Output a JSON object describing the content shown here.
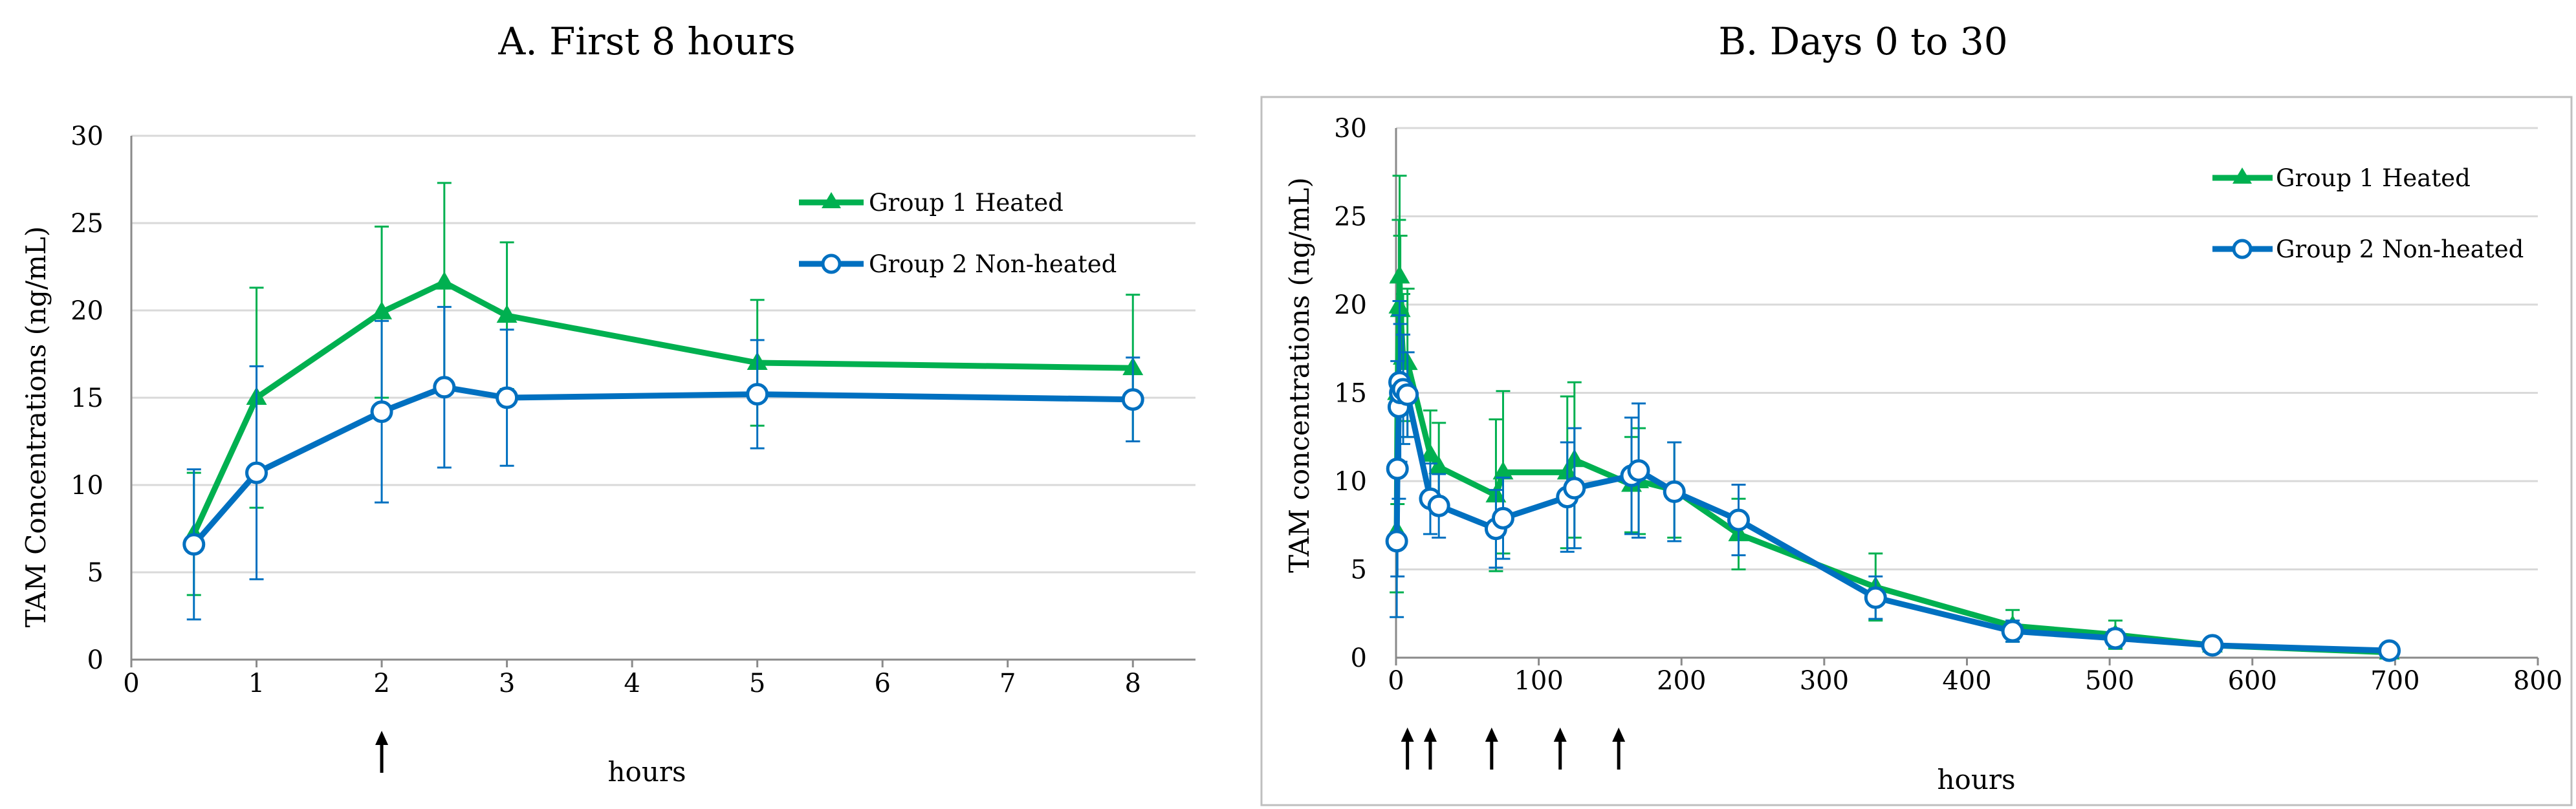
{
  "chart_data": [
    {
      "type": "line",
      "title": "A.  First 8 hours",
      "xlabel": "hours",
      "ylabel": "TAM Concentrations (ng/mL)",
      "xlim": [
        0,
        8.5
      ],
      "ylim": [
        0,
        30
      ],
      "xticks": [
        0,
        1,
        2,
        3,
        4,
        5,
        6,
        7,
        8
      ],
      "yticks": [
        0,
        5,
        10,
        15,
        20,
        25,
        30
      ],
      "x_tick_labels": [
        "0",
        "1",
        "2",
        "3",
        "4",
        "5",
        "6",
        "7",
        "8"
      ],
      "y_tick_labels": [
        "0",
        "5",
        "10",
        "15",
        "20",
        "25",
        "30"
      ],
      "grid": true,
      "legend_position": "top-right",
      "dosing_arrows_x": [
        2
      ],
      "series": [
        {
          "name": "Group 1 Heated",
          "color": "#00b050",
          "marker": "triangle",
          "x": [
            0.5,
            1,
            2,
            2.5,
            3,
            5,
            8
          ],
          "y": [
            7.2,
            15.0,
            19.9,
            21.6,
            19.7,
            17.0,
            16.7
          ],
          "err": [
            3.5,
            6.3,
            4.9,
            5.7,
            4.2,
            3.6,
            4.2
          ]
        },
        {
          "name": "Group 2 Non-heated",
          "color": "#0070c0",
          "marker": "circle",
          "x": [
            0.5,
            1,
            2,
            2.5,
            3,
            5,
            8
          ],
          "y": [
            6.6,
            10.7,
            14.2,
            15.6,
            15.0,
            15.2,
            14.9
          ],
          "err": [
            4.3,
            6.1,
            5.2,
            4.6,
            3.9,
            3.1,
            2.4
          ]
        }
      ]
    },
    {
      "type": "line",
      "title": "B.  Days 0 to 30",
      "xlabel": "hours",
      "ylabel": "TAM concentrations (ng/mL)",
      "xlim": [
        0,
        800
      ],
      "ylim": [
        0,
        30
      ],
      "xticks": [
        0,
        100,
        200,
        300,
        400,
        500,
        600,
        700,
        800
      ],
      "yticks": [
        0,
        5,
        10,
        15,
        20,
        25,
        30
      ],
      "x_tick_labels": [
        "0",
        "100",
        "200",
        "300",
        "400",
        "500",
        "600",
        "700",
        "800"
      ],
      "y_tick_labels": [
        "0",
        "5",
        "10",
        "15",
        "20",
        "25",
        "30"
      ],
      "grid": true,
      "legend_position": "top-right",
      "dosing_arrows_x": [
        8,
        24,
        67,
        115,
        156
      ],
      "series": [
        {
          "name": "Group 1 Heated",
          "color": "#00b050",
          "marker": "triangle",
          "x": [
            0.5,
            1,
            2,
            2.5,
            3,
            5,
            8,
            24,
            30,
            70,
            75,
            120,
            125,
            165,
            170,
            195,
            240,
            336,
            432,
            504,
            572,
            696
          ],
          "y": [
            7.2,
            15.0,
            19.9,
            21.6,
            19.7,
            17.0,
            16.7,
            11.5,
            10.8,
            9.2,
            10.5,
            10.5,
            11.2,
            9.8,
            10.0,
            9.5,
            7.0,
            4.0,
            1.8,
            1.3,
            0.7,
            0.3
          ],
          "err": [
            3.5,
            6.3,
            4.9,
            5.7,
            4.2,
            3.6,
            4.2,
            2.5,
            2.5,
            4.3,
            4.6,
            4.3,
            4.4,
            2.7,
            3.0,
            2.7,
            2.0,
            1.9,
            0.9,
            0.8,
            0.4,
            0.2
          ]
        },
        {
          "name": "Group 2 Non-heated",
          "color": "#0070c0",
          "marker": "circle",
          "x": [
            0.5,
            1,
            2,
            2.5,
            3,
            5,
            8,
            24,
            30,
            70,
            75,
            120,
            125,
            165,
            170,
            195,
            240,
            336,
            432,
            504,
            572,
            696
          ],
          "y": [
            6.6,
            10.7,
            14.2,
            15.6,
            15.0,
            15.2,
            14.9,
            9.0,
            8.6,
            7.3,
            7.9,
            9.1,
            9.6,
            10.3,
            10.6,
            9.4,
            7.8,
            3.4,
            1.5,
            1.1,
            0.7,
            0.4
          ],
          "err": [
            4.3,
            6.1,
            5.2,
            4.6,
            3.9,
            3.1,
            2.4,
            2.0,
            1.8,
            2.2,
            2.3,
            3.1,
            3.4,
            3.3,
            3.8,
            2.8,
            2.0,
            1.2,
            0.6,
            0.5,
            0.3,
            0.2
          ]
        }
      ]
    }
  ]
}
